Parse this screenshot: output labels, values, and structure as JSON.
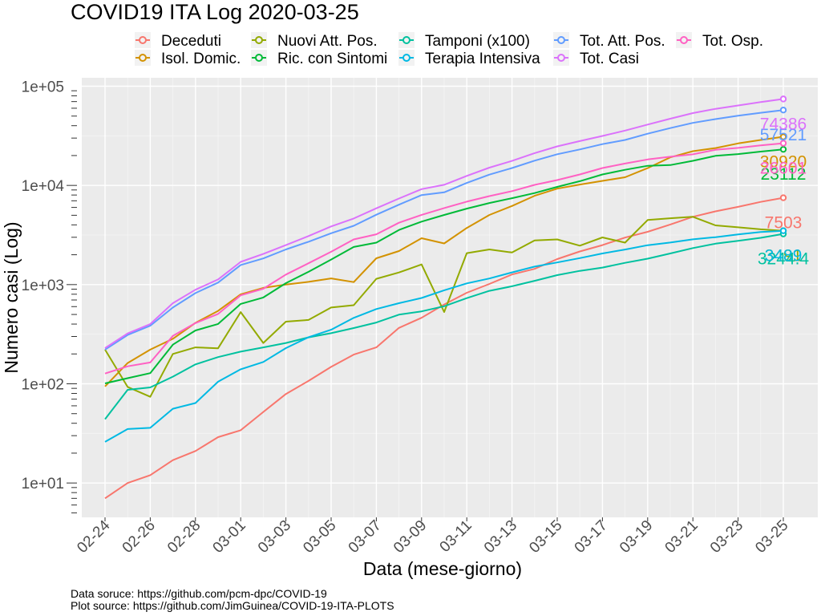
{
  "chart_data": {
    "type": "line",
    "title": "COVID19 ITA Log 2020-03-25",
    "xlabel": "Data (mese-giorno)",
    "ylabel": "Numero casi (Log)",
    "yscale": "log10",
    "ylim": [
      4.5,
      110000
    ],
    "grid": true,
    "legend_position": "top",
    "x": [
      "02-24",
      "02-25",
      "02-26",
      "02-27",
      "02-28",
      "02-29",
      "03-01",
      "03-02",
      "03-03",
      "03-04",
      "03-05",
      "03-06",
      "03-07",
      "03-08",
      "03-09",
      "03-10",
      "03-11",
      "03-12",
      "03-13",
      "03-14",
      "03-15",
      "03-16",
      "03-17",
      "03-18",
      "03-19",
      "03-20",
      "03-21",
      "03-22",
      "03-23",
      "03-24",
      "03-25"
    ],
    "x_tick_labels": [
      "02-24",
      "02-26",
      "02-28",
      "03-01",
      "03-03",
      "03-05",
      "03-07",
      "03-09",
      "03-11",
      "03-13",
      "03-15",
      "03-17",
      "03-19",
      "03-21",
      "03-23",
      "03-25"
    ],
    "y_ticks": [
      10,
      100,
      1000,
      10000,
      100000
    ],
    "y_tick_labels": [
      "1e+01",
      "1e+02",
      "1e+03",
      "1e+04",
      "1e+05"
    ],
    "series": [
      {
        "name": "Deceduti",
        "color": "#F8766D",
        "end_label": "7503",
        "values": [
          7,
          10,
          12,
          17,
          21,
          29,
          34,
          52,
          79,
          107,
          148,
          197,
          233,
          366,
          463,
          631,
          827,
          1016,
          1266,
          1441,
          1809,
          2158,
          2503,
          2978,
          3405,
          4032,
          4825,
          5476,
          6077,
          6820,
          7503
        ]
      },
      {
        "name": "Isol. Domic.",
        "color": "#D39200",
        "end_label": "30920",
        "values": [
          94,
          162,
          221,
          284,
          412,
          543,
          798,
          927,
          1000,
          1065,
          1155,
          1060,
          1843,
          2180,
          2936,
          2599,
          3724,
          5036,
          6201,
          7860,
          9268,
          10197,
          11108,
          12090,
          14935,
          19185,
          22116,
          23783,
          26522,
          28697,
          30920
        ]
      },
      {
        "name": "Nuovi Att. Pos.",
        "color": "#93AA00",
        "end_label": "3491",
        "values": [
          221,
          93,
          74,
          200,
          233,
          228,
          528,
          258,
          423,
          440,
          587,
          620,
          1145,
          1326,
          1598,
          529,
          2076,
          2263,
          2107,
          2785,
          2853,
          2470,
          2989,
          2648,
          4480,
          4670,
          4821,
          3957,
          3780,
          3612,
          3491
        ]
      },
      {
        "name": "Ric. con Sintomi",
        "color": "#00BA38",
        "end_label": "23112",
        "values": [
          101,
          114,
          128,
          248,
          345,
          401,
          639,
          742,
          1034,
          1346,
          1790,
          2394,
          2651,
          3557,
          4316,
          5038,
          5838,
          6650,
          7426,
          8372,
          9663,
          11025,
          12894,
          14363,
          15757,
          16020,
          17708,
          19846,
          20692,
          21937,
          23112
        ]
      },
      {
        "name": "Tamponi (x100)",
        "color": "#00C19F",
        "end_label": "3244.4",
        "values": [
          44,
          87,
          92,
          118,
          157,
          186,
          211,
          233,
          258,
          294,
          324,
          365,
          415,
          498,
          537,
          605,
          730,
          865,
          963,
          1093,
          1247,
          1376,
          1485,
          1657,
          1825,
          2062,
          2335,
          2584,
          2758,
          2961,
          3244.4
        ]
      },
      {
        "name": "Terapia Intensiva",
        "color": "#00B9E3",
        "end_label": "3489",
        "values": [
          26,
          35,
          36,
          56,
          64,
          105,
          140,
          166,
          229,
          295,
          351,
          462,
          567,
          650,
          733,
          877,
          1028,
          1153,
          1328,
          1518,
          1672,
          1851,
          2060,
          2257,
          2498,
          2655,
          2857,
          3009,
          3204,
          3396,
          3489
        ]
      },
      {
        "name": "Tot. Att. Pos.",
        "color": "#619CFF",
        "end_label": "57521",
        "values": [
          221,
          311,
          385,
          588,
          821,
          1049,
          1577,
          1835,
          2263,
          2706,
          3296,
          3916,
          5061,
          6387,
          7985,
          8514,
          10590,
          12839,
          14955,
          17750,
          20603,
          23073,
          26062,
          28710,
          33190,
          37860,
          42681,
          46638,
          50418,
          54030,
          57521
        ]
      },
      {
        "name": "Tot. Casi",
        "color": "#DB72FB",
        "end_label": "74386",
        "values": [
          229,
          322,
          400,
          650,
          888,
          1128,
          1694,
          2036,
          2502,
          3089,
          3858,
          4636,
          5883,
          7375,
          9172,
          10149,
          12462,
          15113,
          17660,
          21157,
          24747,
          27980,
          31506,
          35713,
          41035,
          47021,
          53578,
          59138,
          63927,
          69176,
          74386
        ]
      },
      {
        "name": "Tot. Osp.",
        "color": "#FF61C3",
        "end_label": "26601",
        "values": [
          127,
          150,
          164,
          304,
          409,
          506,
          779,
          908,
          1263,
          1641,
          2141,
          2856,
          3218,
          4207,
          5049,
          5915,
          6866,
          7803,
          8754,
          10125,
          11326,
          12894,
          14954,
          16620,
          18255,
          19446,
          20565,
          22855,
          23896,
          25333,
          26601
        ]
      }
    ],
    "legend_order": [
      "Deceduti",
      "Nuovi Att. Pos.",
      "Tamponi (x100)",
      "Tot. Att. Pos.",
      "Tot. Osp.",
      "Isol. Domic.",
      "Ric. con Sintomi",
      "Terapia Intensiva",
      "Tot. Casi"
    ]
  },
  "captions": {
    "line1": "Data soruce: https://github.com/pcm-dpc/COVID-19",
    "line2": "Plot source: https://github.com/JimGuinea/COVID-19-ITA-PLOTS"
  }
}
